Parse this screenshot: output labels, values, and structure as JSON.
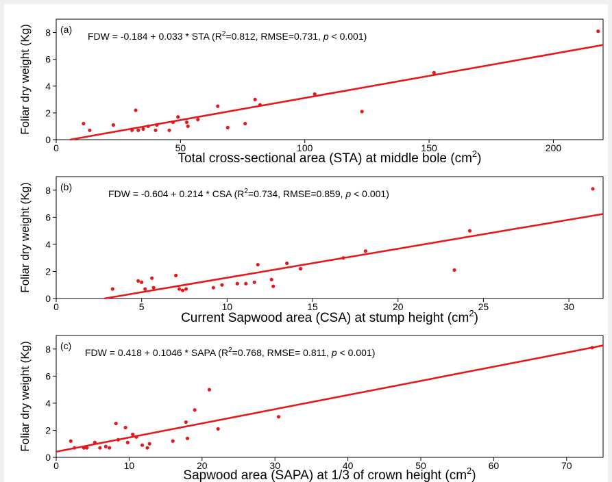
{
  "chart_data": [
    {
      "type": "scatter",
      "panel_label": "(a)",
      "equation": {
        "prefix": "FDW = -0.184 + 0.033 * STA  (R",
        "sup": "2",
        "middle": "=0.812, RMSE=0.731, ",
        "p": "p",
        "suffix": " < 0.001)"
      },
      "xlabel": {
        "text": "Total cross-sectional area (STA) at middle bole (cm",
        "sup": "2",
        "close": ")"
      },
      "ylabel": "Foliar dry weight (Kg)",
      "xlim": [
        0,
        220
      ],
      "ylim": [
        0,
        9
      ],
      "xticks": [
        0,
        50,
        100,
        150,
        200
      ],
      "yticks": [
        0,
        2,
        4,
        6,
        8
      ],
      "fit": {
        "intercept": -0.184,
        "slope": 0.033
      },
      "x": [
        11,
        13.5,
        23,
        30.5,
        32,
        33,
        35,
        37,
        40,
        40.5,
        45.5,
        47,
        49,
        52.5,
        53,
        57,
        65,
        69,
        76,
        80,
        82,
        104,
        123,
        152,
        218
      ],
      "y": [
        1.2,
        0.7,
        1.1,
        0.7,
        2.2,
        0.7,
        0.8,
        1.0,
        0.7,
        1.1,
        0.7,
        1.3,
        1.7,
        1.3,
        1.0,
        1.5,
        2.5,
        0.9,
        1.2,
        3.0,
        2.6,
        3.4,
        2.1,
        5.0,
        8.1
      ]
    },
    {
      "type": "scatter",
      "panel_label": "(b)",
      "equation": {
        "prefix": "FDW = -0.604 + 0.214 * CSA  (R",
        "sup": "2",
        "middle": "=0.734, RMSE=0.859, ",
        "p": "p",
        "suffix": " < 0.001)"
      },
      "xlabel": {
        "text": "Current Sapwood area (CSA) at stump height (cm",
        "sup": "2",
        "close": ")"
      },
      "ylabel": "Foliar dry weight (Kg)",
      "xlim": [
        0,
        32
      ],
      "ylim": [
        0,
        9
      ],
      "xticks": [
        0,
        5,
        10,
        15,
        20,
        25,
        30
      ],
      "yticks": [
        0,
        2,
        4,
        6,
        8
      ],
      "fit": {
        "intercept": -0.604,
        "slope": 0.214
      },
      "x": [
        3.3,
        4.8,
        5.0,
        5.2,
        5.6,
        5.7,
        7.0,
        7.2,
        7.4,
        7.6,
        9.2,
        9.7,
        10.6,
        11.1,
        11.6,
        11.8,
        12.6,
        12.7,
        13.5,
        14.3,
        16.8,
        18.1,
        23.3,
        24.2,
        31.4
      ],
      "y": [
        0.7,
        1.3,
        1.2,
        0.7,
        1.5,
        0.8,
        1.7,
        0.7,
        0.6,
        0.7,
        0.8,
        1.0,
        1.1,
        1.1,
        1.2,
        2.5,
        1.4,
        0.9,
        2.6,
        2.2,
        3.0,
        3.5,
        2.1,
        5.0,
        8.1
      ]
    },
    {
      "type": "scatter",
      "panel_label": "(c)",
      "equation": {
        "prefix": "FDW = 0.418 + 0.1046 * SAPA  (R",
        "sup": "2",
        "middle": "=0.768, RMSE= 0.811, ",
        "p": "p",
        "suffix": " < 0.001)"
      },
      "xlabel": {
        "text": "Sapwood area (SAPA) at 1/3 of crown height (cm",
        "sup": "2",
        "close": ")"
      },
      "ylabel": "Foliar dry weight (Kg)",
      "xlim": [
        0,
        75
      ],
      "ylim": [
        0,
        9
      ],
      "xticks": [
        0,
        10,
        20,
        30,
        40,
        50,
        60,
        70
      ],
      "yticks": [
        0,
        2,
        4,
        6,
        8
      ],
      "fit": {
        "intercept": 0.418,
        "slope": 0.1046
      },
      "x": [
        2.0,
        2.5,
        3.8,
        4.2,
        5.3,
        6.0,
        6.8,
        7.3,
        8.2,
        8.5,
        9.5,
        9.8,
        10.5,
        11.0,
        11.8,
        12.5,
        12.8,
        16.0,
        17.8,
        18.0,
        19.0,
        21.0,
        22.2,
        30.5,
        73.5
      ],
      "y": [
        1.2,
        0.7,
        0.7,
        0.7,
        1.1,
        0.7,
        0.8,
        0.7,
        2.5,
        1.3,
        2.2,
        1.1,
        1.7,
        1.5,
        0.9,
        0.7,
        1.0,
        1.2,
        2.6,
        1.4,
        3.5,
        5.0,
        2.1,
        3.0,
        8.1
      ]
    }
  ]
}
